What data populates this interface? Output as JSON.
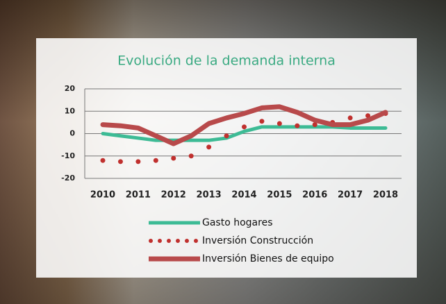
{
  "chart_data": {
    "type": "line",
    "title": "Evolución de la demanda interna",
    "categories": [
      "2010",
      null,
      "2011",
      null,
      "2012",
      null,
      "2013",
      null,
      "2014",
      null,
      "2015",
      null,
      "2016",
      null,
      "2017",
      null,
      "2018"
    ],
    "ylim": [
      -20,
      20
    ],
    "yticks": [
      -20,
      -10,
      0,
      10,
      20
    ],
    "grid": true,
    "series": [
      {
        "name": "Gasto hogares",
        "color": "#3dbb95",
        "style": "solid",
        "values": [
          0,
          -1,
          -2,
          -3,
          -3,
          -3,
          -3,
          -2,
          1,
          3,
          3,
          3,
          3,
          3,
          2.5,
          2.5,
          2.5
        ]
      },
      {
        "name": "Inversión  Construcción",
        "color": "#c0302e",
        "style": "dotted",
        "values": [
          -12,
          -12.5,
          -12.5,
          -12,
          -11,
          -10,
          -6,
          -1,
          3,
          5.5,
          4.5,
          3.5,
          4,
          5,
          7,
          8,
          9
        ]
      },
      {
        "name": "Inversión Bienes de equipo",
        "color": "#b84a4b",
        "style": "solid",
        "values": [
          4,
          3.5,
          2.5,
          -1,
          -4.5,
          -1,
          4.5,
          7,
          9,
          11.5,
          12,
          9.5,
          6,
          4,
          4,
          6,
          9.5
        ]
      }
    ]
  }
}
